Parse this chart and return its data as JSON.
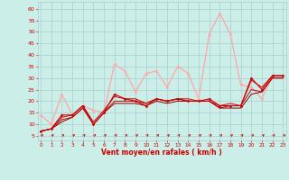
{
  "bg_color": "#cceee8",
  "grid_color": "#aacccc",
  "x_label": "Vent moyen/en rafales ( km/h )",
  "x_ticks": [
    0,
    1,
    2,
    3,
    4,
    5,
    6,
    7,
    8,
    9,
    10,
    11,
    12,
    13,
    14,
    15,
    16,
    17,
    18,
    19,
    20,
    21,
    22,
    23
  ],
  "y_ticks": [
    5,
    10,
    15,
    20,
    25,
    30,
    35,
    40,
    45,
    50,
    55,
    60
  ],
  "ylim": [
    3,
    63
  ],
  "xlim": [
    -0.3,
    23.3
  ],
  "lines": [
    {
      "x": [
        0,
        1,
        2,
        3,
        4,
        5,
        6,
        7,
        8,
        9,
        10,
        11,
        12,
        13,
        14,
        15,
        16,
        17,
        18,
        19,
        20,
        21,
        22,
        23
      ],
      "y": [
        7,
        8,
        14,
        14,
        18,
        10,
        15,
        23,
        21,
        20,
        18,
        21,
        20,
        21,
        20,
        20,
        21,
        18,
        18,
        18,
        30,
        25,
        31,
        31
      ],
      "color": "#cc0000",
      "lw": 0.8,
      "marker": "D",
      "ms": 1.5,
      "zorder": 5
    },
    {
      "x": [
        0,
        1,
        2,
        3,
        4,
        5,
        6,
        7,
        8,
        9,
        10,
        11,
        12,
        13,
        14,
        15,
        16,
        17,
        18,
        19,
        20,
        21,
        22,
        23
      ],
      "y": [
        7,
        8,
        13,
        14,
        18,
        11,
        16,
        22,
        21,
        21,
        19,
        21,
        20,
        21,
        21,
        20,
        20,
        18,
        19,
        18,
        29,
        26,
        31,
        31
      ],
      "color": "#cc0000",
      "lw": 0.7,
      "marker": null,
      "ms": 0,
      "zorder": 4
    },
    {
      "x": [
        0,
        1,
        2,
        3,
        4,
        5,
        6,
        7,
        8,
        9,
        10,
        11,
        12,
        13,
        14,
        15,
        16,
        17,
        18,
        19,
        20,
        21,
        22,
        23
      ],
      "y": [
        7,
        8,
        12,
        13,
        17,
        10,
        15,
        20,
        20,
        20,
        19,
        21,
        20,
        21,
        20,
        20,
        20,
        17,
        18,
        18,
        25,
        24,
        30,
        30
      ],
      "color": "#cc0000",
      "lw": 0.7,
      "marker": null,
      "ms": 0,
      "zorder": 4
    },
    {
      "x": [
        0,
        1,
        2,
        3,
        4,
        5,
        6,
        7,
        8,
        9,
        10,
        11,
        12,
        13,
        14,
        15,
        16,
        17,
        18,
        19,
        20,
        21,
        22,
        23
      ],
      "y": [
        7,
        8,
        11,
        13,
        17,
        10,
        15,
        19,
        19,
        19,
        18,
        20,
        19,
        20,
        20,
        20,
        20,
        17,
        17,
        17,
        23,
        24,
        30,
        30
      ],
      "color": "#880000",
      "lw": 0.7,
      "marker": null,
      "ms": 0,
      "zorder": 3
    },
    {
      "x": [
        0,
        1,
        2,
        3,
        4,
        5,
        6,
        7,
        8,
        9,
        10,
        11,
        12,
        13,
        14,
        15,
        16,
        17,
        18,
        19,
        20,
        21,
        22,
        23
      ],
      "y": [
        14,
        10,
        23,
        14,
        18,
        16,
        15,
        36,
        33,
        24,
        32,
        33,
        26,
        35,
        32,
        21,
        49,
        58,
        49,
        27,
        26,
        21,
        31,
        31
      ],
      "color": "#ffaaaa",
      "lw": 0.8,
      "marker": "o",
      "ms": 1.8,
      "zorder": 2
    },
    {
      "x": [
        0,
        1,
        2,
        3,
        4,
        5,
        6,
        7,
        8,
        9,
        10,
        11,
        12,
        13,
        14,
        15,
        16,
        17,
        18,
        19,
        20,
        21,
        22,
        23
      ],
      "y": [
        14,
        10,
        23,
        14,
        18,
        16,
        15,
        36,
        33,
        24,
        32,
        33,
        26,
        35,
        32,
        21,
        49,
        58,
        49,
        27,
        26,
        21,
        31,
        31
      ],
      "color": "#ffaaaa",
      "lw": 0.6,
      "marker": null,
      "ms": 0,
      "zorder": 1
    }
  ],
  "arrow_color": "#cc0000",
  "label_color": "#cc0000"
}
